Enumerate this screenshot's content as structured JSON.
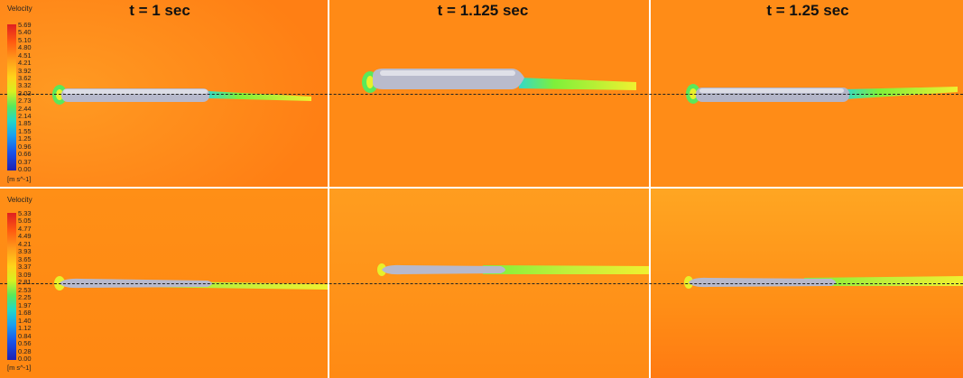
{
  "time_labels": [
    "t = 1 sec",
    "t = 1.125 sec",
    "t = 1.25 sec"
  ],
  "legend_top": {
    "title": "Velocity",
    "ticks": [
      "5.69",
      "5.40",
      "5.10",
      "4.80",
      "4.51",
      "4.21",
      "3.92",
      "3.62",
      "3.32",
      "3.03",
      "2.73",
      "2.44",
      "2.14",
      "1.85",
      "1.55",
      "1.25",
      "0.96",
      "0.66",
      "0.37",
      "0.00"
    ],
    "unit": "[m s^-1]"
  },
  "legend_bottom": {
    "title": "Velocity",
    "ticks": [
      "5.33",
      "5.05",
      "4.77",
      "4.49",
      "4.21",
      "3.93",
      "3.65",
      "3.37",
      "3.09",
      "2.81",
      "2.53",
      "2.25",
      "1.97",
      "1.68",
      "1.40",
      "1.12",
      "0.84",
      "0.56",
      "0.28",
      "0.00"
    ],
    "unit": "[m s^-1]"
  },
  "colors": {
    "field_orange": "#ff8c1a",
    "field_light": "#ffa21f",
    "body_grey": "#b7b9cc",
    "wake_green": "#7ef03a",
    "wake_yellow": "#e8f02a"
  }
}
